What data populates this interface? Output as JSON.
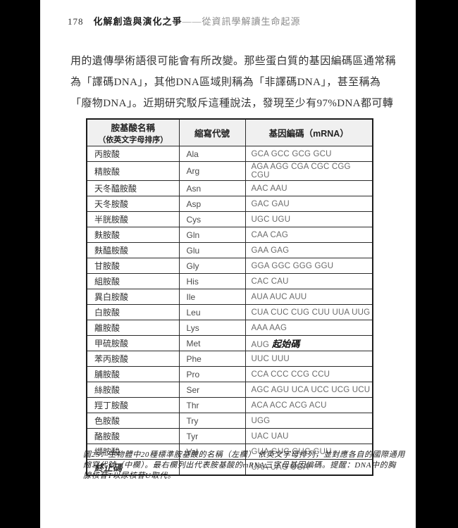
{
  "page": {
    "number": "178",
    "book_title": "化解創造與演化之爭",
    "book_subtitle": "——從資訊學解讀生命起源"
  },
  "paragraph": {
    "lines": [
      "用的遺傳學術語很可能會有所改變。那些蛋白質的基因編碼區通常稱",
      "為「譯碼DNA」，其他DNA區域則稱為「非譯碼DNA」，甚至稱為",
      "「廢物DNA」。近期研究駁斥這種說法，發現至少有97%DNA都可轉"
    ]
  },
  "table": {
    "headers": {
      "name_line1": "胺基酸名稱",
      "name_line2": "（依英文字母排序）",
      "abbr": "縮寫代號",
      "code": "基因編碼（mRNA）"
    },
    "rows": [
      {
        "name": "丙胺酸",
        "abbr": "Ala",
        "codons": "GCA GCC GCG GCU"
      },
      {
        "name": "精胺酸",
        "abbr": "Arg",
        "codons": "AGA AGG CGA CGC CGG CGU"
      },
      {
        "name": "天冬醯胺酸",
        "abbr": "Asn",
        "codons": "AAC AAU"
      },
      {
        "name": "天冬胺酸",
        "abbr": "Asp",
        "codons": "GAC GAU"
      },
      {
        "name": "半胱胺酸",
        "abbr": "Cys",
        "codons": "UGC UGU"
      },
      {
        "name": "麩胺酸",
        "abbr": "Gln",
        "codons": "CAA CAG"
      },
      {
        "name": "麩醯胺酸",
        "abbr": "Glu",
        "codons": "GAA GAG"
      },
      {
        "name": "甘胺酸",
        "abbr": "Gly",
        "codons": "GGA GGC GGG GGU"
      },
      {
        "name": "組胺酸",
        "abbr": "His",
        "codons": "CAC CAU"
      },
      {
        "name": "異白胺酸",
        "abbr": "Ile",
        "codons": "AUA AUC AUU"
      },
      {
        "name": "白胺酸",
        "abbr": "Leu",
        "codons": "CUA CUC CUG CUU UUA UUG"
      },
      {
        "name": "離胺酸",
        "abbr": "Lys",
        "codons": "AAA AAG"
      },
      {
        "name": "甲硫胺酸",
        "abbr": "Met",
        "codons": "AUG",
        "note": "起始碼"
      },
      {
        "name": "苯丙胺酸",
        "abbr": "Phe",
        "codons": "UUC UUU"
      },
      {
        "name": "脯胺酸",
        "abbr": "Pro",
        "codons": "CCA CCC CCG CCU"
      },
      {
        "name": "絲胺酸",
        "abbr": "Ser",
        "codons": "AGC AGU UCA UCC UCG UCU"
      },
      {
        "name": "羥丁胺酸",
        "abbr": "Thr",
        "codons": "ACA ACC ACG ACU"
      },
      {
        "name": "色胺酸",
        "abbr": "Try",
        "codons": "UGG"
      },
      {
        "name": "酪胺酸",
        "abbr": "Tyr",
        "codons": "UAC UAU"
      },
      {
        "name": "纈胺酸",
        "abbr": "Val",
        "codons": "GUA GUC GUG GUU"
      },
      {
        "name": "終止碼",
        "abbr": "",
        "codons": "UAA UAG UGA",
        "emphasis": true
      }
    ]
  },
  "caption": {
    "lines": [
      "圖25：生物體中20種標準胺基酸的名稱（左欄） 依英文字母排列，並對應各自的國際通用",
      "縮寫代號（中欄）。最右欄列出代表胺基酸的mRNA三字母基因編碼。提醒：DNA中的胸",
      "腺核苷T以尿核苷U取代。"
    ]
  },
  "colors": {
    "page_background": "#ffffff",
    "edge_bars": "#000000",
    "table_border": "#1c1c1c",
    "table_header_background": "#f0f0f0",
    "codon_text": "#6a6a6a",
    "body_text": "#333333",
    "subtitle_gray": "#8a8a8a"
  }
}
